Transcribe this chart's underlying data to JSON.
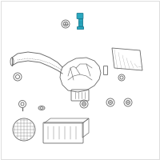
{
  "background_color": "#ffffff",
  "border_color": "#d0d0d0",
  "highlight_color": "#2aa8c0",
  "line_color": "#666666",
  "line_width": 0.6,
  "highlight_line_color": "#1a7a90",
  "fig_w": 2.0,
  "fig_h": 2.0,
  "dpi": 100
}
